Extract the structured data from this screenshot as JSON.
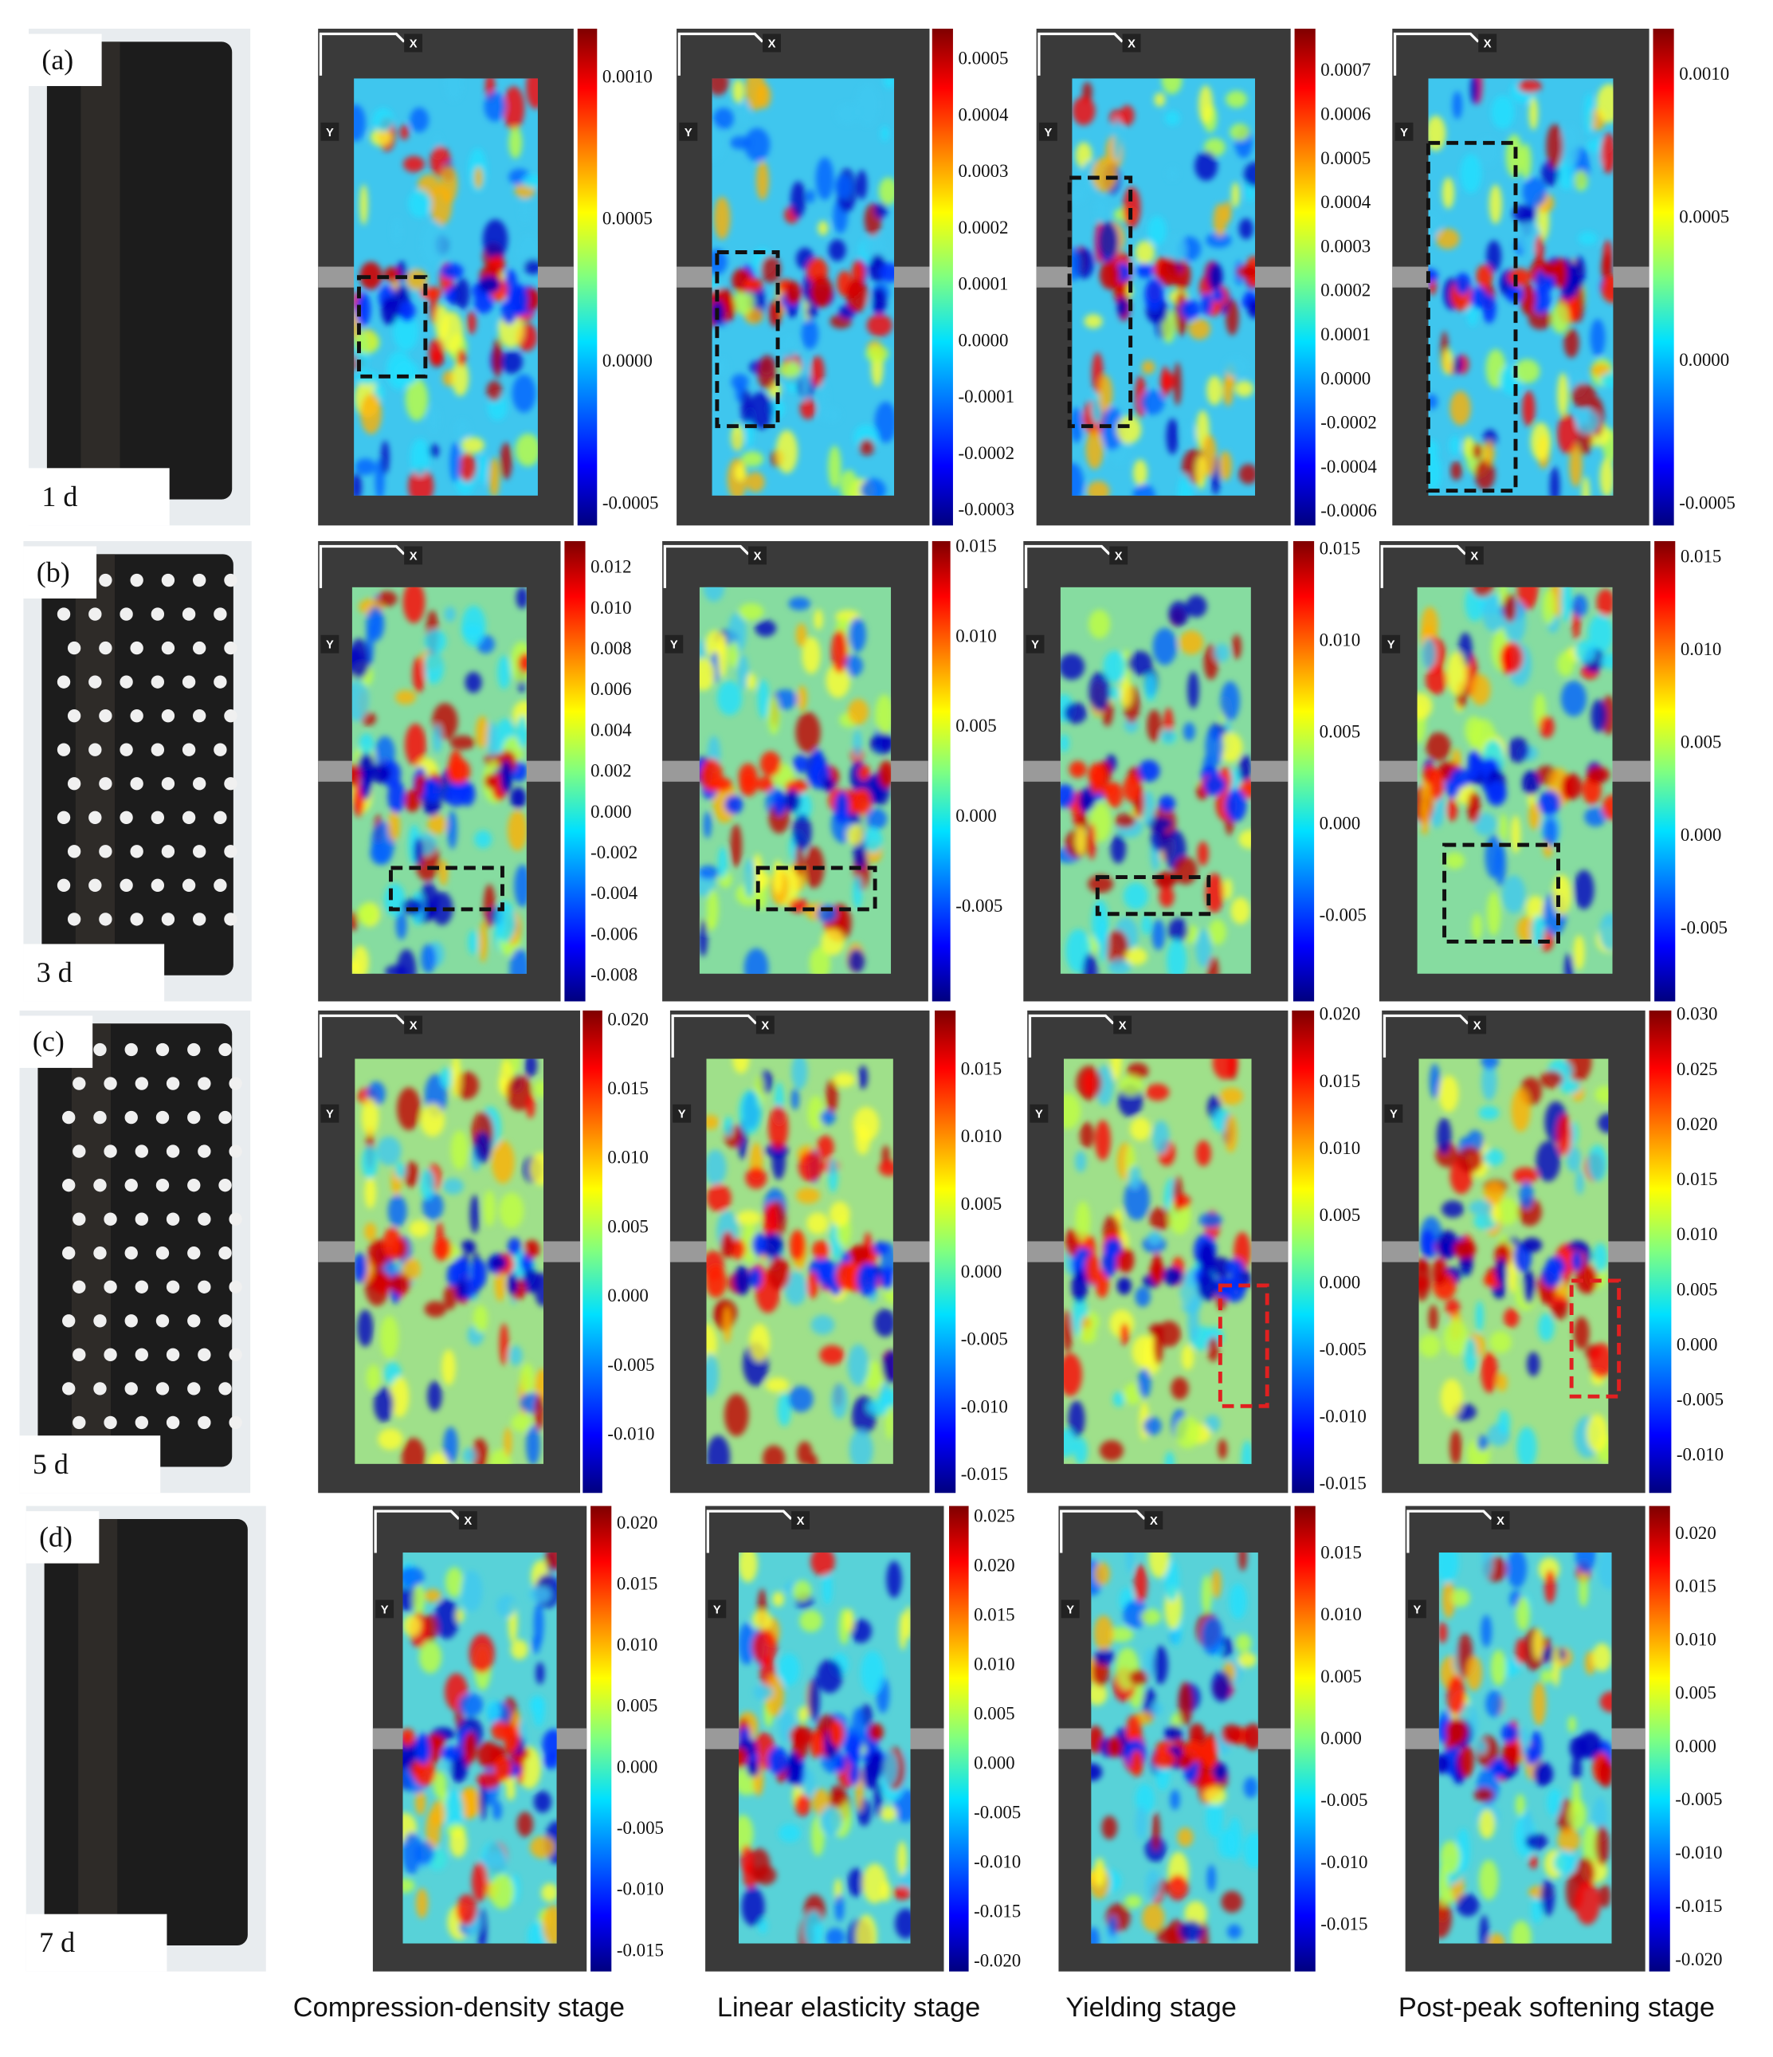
{
  "panels": [
    {
      "label": "(a)",
      "age": "1 d",
      "colorbars": [
        [
          "0.0010",
          "0.0005",
          "0.0000",
          "-0.0005"
        ],
        [
          "0.0005",
          "0.0004",
          "0.0003",
          "0.0002",
          "0.0001",
          "0.0000",
          "-0.0001",
          "-0.0002",
          "-0.0003"
        ],
        [
          "0.0007",
          "0.0006",
          "0.0005",
          "0.0004",
          "0.0003",
          "0.0002",
          "0.0001",
          "0.0000",
          "-0.0002",
          "-0.0004",
          "-0.0006"
        ],
        [
          "0.0010",
          "0.0005",
          "0.0000",
          "-0.0005"
        ]
      ]
    },
    {
      "label": "(b)",
      "age": "3 d",
      "colorbars": [
        [
          "0.012",
          "0.010",
          "0.008",
          "0.006",
          "0.004",
          "0.002",
          "0.000",
          "-0.002",
          "-0.004",
          "-0.006",
          "-0.008"
        ],
        [
          "0.015",
          "0.010",
          "0.005",
          "0.000",
          "-0.005"
        ],
        [
          "0.015",
          "0.010",
          "0.005",
          "0.000",
          "-0.005"
        ],
        [
          "0.015",
          "0.010",
          "0.005",
          "0.000",
          "-0.005"
        ]
      ]
    },
    {
      "label": "(c)",
      "age": "5 d",
      "colorbars": [
        [
          "0.020",
          "0.015",
          "0.010",
          "0.005",
          "0.000",
          "-0.005",
          "-0.010"
        ],
        [
          "0.015",
          "0.010",
          "0.005",
          "0.000",
          "-0.005",
          "-0.010",
          "-0.015"
        ],
        [
          "0.020",
          "0.015",
          "0.010",
          "0.005",
          "0.000",
          "-0.005",
          "-0.010",
          "-0.015"
        ],
        [
          "0.030",
          "0.025",
          "0.020",
          "0.015",
          "0.010",
          "0.005",
          "0.000",
          "-0.005",
          "-0.010"
        ]
      ]
    },
    {
      "label": "(d)",
      "age": "7 d",
      "colorbars": [
        [
          "0.020",
          "0.015",
          "0.010",
          "0.005",
          "0.000",
          "-0.005",
          "-0.010",
          "-0.015"
        ],
        [
          "0.025",
          "0.020",
          "0.015",
          "0.010",
          "0.005",
          "0.000",
          "-0.005",
          "-0.010",
          "-0.015",
          "-0.020"
        ],
        [
          "0.015",
          "0.010",
          "0.005",
          "0.000",
          "-0.005",
          "-0.010",
          "-0.015"
        ],
        [
          "0.020",
          "0.015",
          "0.010",
          "0.005",
          "0.000",
          "-0.005",
          "-0.010",
          "-0.015",
          "-0.020"
        ]
      ]
    }
  ],
  "stages": [
    "Compression-density stage",
    "Linear elasticity stage",
    "Yielding stage",
    "Post-peak softening stage"
  ],
  "markers": {
    "x": "X",
    "y": "Y"
  }
}
